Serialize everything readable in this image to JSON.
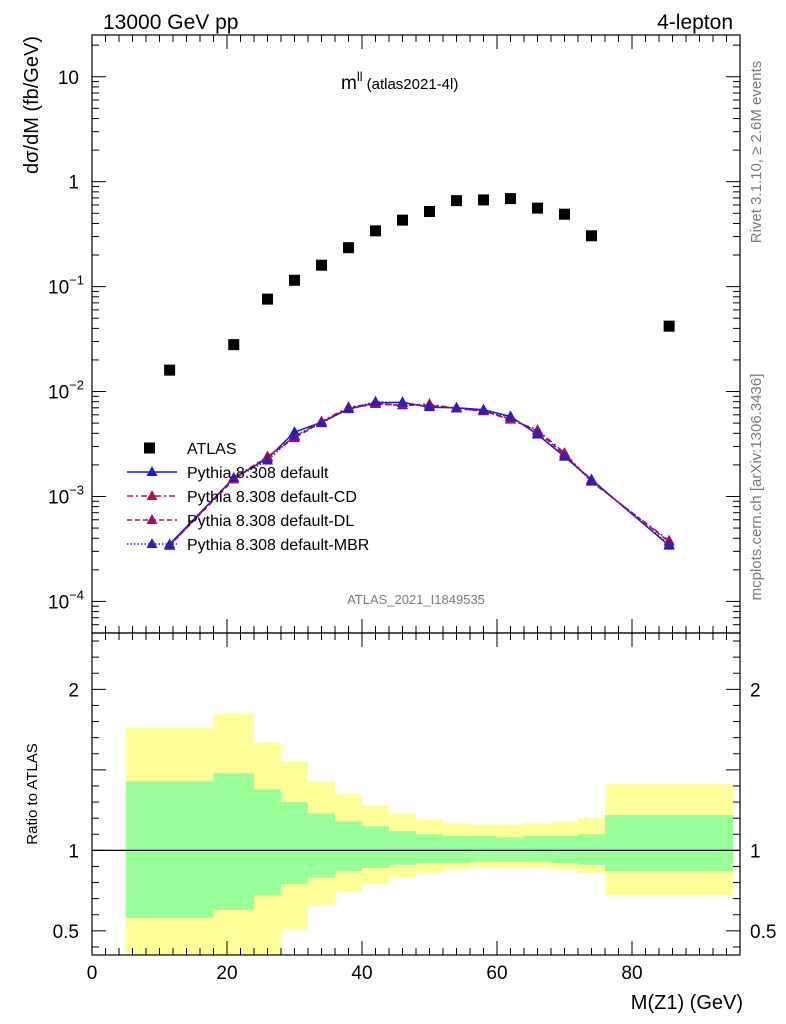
{
  "header": {
    "left": "13000 GeV pp",
    "right": "4-lepton"
  },
  "side_labels": {
    "rivet": "Rivet 3.1.10, ≥ 2.6M events",
    "mcplots": "mcplots.cern.ch [arXiv:1306.3436]"
  },
  "watermark": "ATLAS_2021_I1849535",
  "colors": {
    "data": "#000000",
    "default": "#1a1ad0",
    "cd": "#b0154a",
    "dl": "#a0106a",
    "mbr": "#3a1ab0",
    "band_inner": "#99ff99",
    "band_outer": "#ffff99"
  },
  "chart_data": [
    {
      "type": "scatter",
      "title_main": "m",
      "title_sup": "ll",
      "title_sub": "(atlas2021-4l)",
      "ylabel": "dσ/dM (fb/GeV)",
      "yscale": "log",
      "ylim": [
        5e-05,
        25
      ],
      "xlim": [
        0,
        96
      ],
      "y_ticks": [
        {
          "value": 10,
          "label": "10",
          "sup": ""
        },
        {
          "value": 1,
          "label": "1",
          "sup": ""
        },
        {
          "value": 0.1,
          "label": "10",
          "sup": "−1"
        },
        {
          "value": 0.01,
          "label": "10",
          "sup": "−2"
        },
        {
          "value": 0.001,
          "label": "10",
          "sup": "−3"
        },
        {
          "value": 0.0001,
          "label": "10",
          "sup": "−4"
        }
      ],
      "legend_position": "lower-left",
      "data": {
        "name": "ATLAS",
        "x": [
          11.5,
          21,
          26,
          30,
          34,
          38,
          42,
          46,
          50,
          54,
          58,
          62,
          66,
          70,
          74,
          85.5
        ],
        "y": [
          0.016,
          0.028,
          0.076,
          0.115,
          0.16,
          0.235,
          0.34,
          0.43,
          0.52,
          0.66,
          0.67,
          0.69,
          0.56,
          0.49,
          0.305,
          0.042
        ]
      },
      "series": [
        {
          "name": "Pythia 8.308 default",
          "key": "default",
          "x": [
            11.5,
            21,
            26,
            30,
            34,
            38,
            42,
            46,
            50,
            54,
            58,
            62,
            66,
            70,
            74,
            85.5
          ],
          "y": [
            0.00035,
            0.0015,
            0.0023,
            0.0041,
            0.0051,
            0.0068,
            0.0078,
            0.0079,
            0.0071,
            0.007,
            0.0067,
            0.0058,
            0.0039,
            0.0024,
            0.00145,
            0.00034
          ]
        },
        {
          "name": "Pythia 8.308 default-CD",
          "key": "cd",
          "x": [
            11.5,
            21,
            26,
            30,
            34,
            38,
            42,
            46,
            50,
            54,
            58,
            62,
            66,
            70,
            74,
            85.5
          ],
          "y": [
            0.00034,
            0.0015,
            0.0024,
            0.0037,
            0.0052,
            0.0071,
            0.0077,
            0.0074,
            0.0076,
            0.0069,
            0.0065,
            0.0054,
            0.0043,
            0.0026,
            0.00138,
            0.00038
          ]
        },
        {
          "name": "Pythia 8.308 default-DL",
          "key": "dl",
          "x": [
            11.5,
            21,
            26,
            30,
            34,
            38,
            42,
            46,
            50,
            54,
            58,
            62,
            66,
            70,
            74,
            85.5
          ],
          "y": [
            0.00034,
            0.00145,
            0.0024,
            0.0036,
            0.0051,
            0.0069,
            0.0076,
            0.0074,
            0.0074,
            0.0069,
            0.0065,
            0.0055,
            0.0042,
            0.0025,
            0.0014,
            0.00037
          ]
        },
        {
          "name": "Pythia 8.308 default-MBR",
          "key": "mbr",
          "x": [
            11.5,
            21,
            26,
            30,
            34,
            38,
            42,
            46,
            50,
            54,
            58,
            62,
            66,
            70,
            74,
            85.5
          ],
          "y": [
            0.00034,
            0.0015,
            0.0022,
            0.0038,
            0.005,
            0.0069,
            0.008,
            0.0078,
            0.0072,
            0.007,
            0.0066,
            0.0057,
            0.004,
            0.0024,
            0.00142,
            0.00035
          ]
        }
      ]
    },
    {
      "type": "area",
      "ylabel": "Ratio to ATLAS",
      "xlabel": "M(Z1) (GeV)",
      "yscale": "linear",
      "ylim": [
        0.35,
        2.35
      ],
      "xlim": [
        0,
        96
      ],
      "x_ticks": [
        0,
        20,
        40,
        60,
        80
      ],
      "y_ticks": [
        {
          "value": 2,
          "label": "2"
        },
        {
          "value": 1,
          "label": "1"
        },
        {
          "value": 0.5,
          "label": "0.5"
        }
      ],
      "reference_line": 1,
      "bins": [
        {
          "lo": 5,
          "hi": 18,
          "inner": [
            0.58,
            1.43
          ],
          "outer": [
            0.35,
            1.76
          ]
        },
        {
          "lo": 18,
          "hi": 24,
          "inner": [
            0.63,
            1.48
          ],
          "outer": [
            0.35,
            1.85
          ]
        },
        {
          "lo": 24,
          "hi": 28,
          "inner": [
            0.72,
            1.38
          ],
          "outer": [
            0.35,
            1.67
          ]
        },
        {
          "lo": 28,
          "hi": 32,
          "inner": [
            0.79,
            1.3
          ],
          "outer": [
            0.51,
            1.55
          ]
        },
        {
          "lo": 32,
          "hi": 36,
          "inner": [
            0.83,
            1.23
          ],
          "outer": [
            0.66,
            1.43
          ]
        },
        {
          "lo": 36,
          "hi": 40,
          "inner": [
            0.87,
            1.18
          ],
          "outer": [
            0.74,
            1.35
          ]
        },
        {
          "lo": 40,
          "hi": 44,
          "inner": [
            0.89,
            1.15
          ],
          "outer": [
            0.79,
            1.28
          ]
        },
        {
          "lo": 44,
          "hi": 48,
          "inner": [
            0.91,
            1.12
          ],
          "outer": [
            0.83,
            1.23
          ]
        },
        {
          "lo": 48,
          "hi": 52,
          "inner": [
            0.92,
            1.1
          ],
          "outer": [
            0.86,
            1.19
          ]
        },
        {
          "lo": 52,
          "hi": 56,
          "inner": [
            0.92,
            1.09
          ],
          "outer": [
            0.88,
            1.17
          ]
        },
        {
          "lo": 56,
          "hi": 60,
          "inner": [
            0.93,
            1.09
          ],
          "outer": [
            0.89,
            1.16
          ]
        },
        {
          "lo": 60,
          "hi": 64,
          "inner": [
            0.93,
            1.08
          ],
          "outer": [
            0.89,
            1.16
          ]
        },
        {
          "lo": 64,
          "hi": 68,
          "inner": [
            0.93,
            1.09
          ],
          "outer": [
            0.89,
            1.17
          ]
        },
        {
          "lo": 68,
          "hi": 72,
          "inner": [
            0.92,
            1.09
          ],
          "outer": [
            0.88,
            1.18
          ]
        },
        {
          "lo": 72,
          "hi": 76,
          "inner": [
            0.91,
            1.1
          ],
          "outer": [
            0.86,
            1.2
          ]
        },
        {
          "lo": 76,
          "hi": 95,
          "inner": [
            0.87,
            1.22
          ],
          "outer": [
            0.72,
            1.41
          ]
        }
      ]
    }
  ]
}
